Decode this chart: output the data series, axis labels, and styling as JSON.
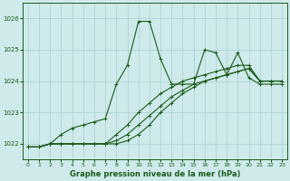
{
  "title": "Graphe pression niveau de la mer (hPa)",
  "bg_color": "#ceeaea",
  "grid_color": "#aacfcf",
  "line_color": "#1a5c1a",
  "xlim": [
    -0.5,
    23.5
  ],
  "ylim": [
    1021.5,
    1026.5
  ],
  "yticks": [
    1022,
    1023,
    1024,
    1025,
    1026
  ],
  "xticks": [
    0,
    1,
    2,
    3,
    4,
    5,
    6,
    7,
    8,
    9,
    10,
    11,
    12,
    13,
    14,
    15,
    16,
    17,
    18,
    19,
    20,
    21,
    22,
    23
  ],
  "s1": [
    1021.9,
    1021.9,
    1022.0,
    1022.3,
    1022.5,
    1022.6,
    1022.7,
    1022.8,
    1023.9,
    1024.5,
    1025.9,
    1025.9,
    1024.7,
    1023.9,
    1023.9,
    1023.9,
    1025.0,
    1024.9,
    1024.2,
    1024.9,
    1024.1,
    1023.9,
    1023.9,
    1023.9
  ],
  "s2": [
    1021.9,
    1021.9,
    1022.0,
    1022.0,
    1022.0,
    1022.0,
    1022.0,
    1022.0,
    1022.3,
    1022.6,
    1023.0,
    1023.3,
    1023.6,
    1023.8,
    1024.0,
    1024.1,
    1024.2,
    1024.3,
    1024.4,
    1024.5,
    1024.5,
    1024.0,
    1024.0,
    1024.0
  ],
  "s3": [
    1021.9,
    1021.9,
    1022.0,
    1022.0,
    1022.0,
    1022.0,
    1022.0,
    1022.0,
    1022.1,
    1022.3,
    1022.6,
    1022.9,
    1023.2,
    1023.5,
    1023.7,
    1023.9,
    1024.0,
    1024.1,
    1024.2,
    1024.3,
    1024.4,
    1024.0,
    1024.0,
    1024.0
  ],
  "s4": [
    1021.9,
    1021.9,
    1022.0,
    1022.0,
    1022.0,
    1022.0,
    1022.0,
    1022.0,
    1022.0,
    1022.1,
    1022.3,
    1022.6,
    1023.0,
    1023.3,
    1023.6,
    1023.8,
    1024.0,
    1024.1,
    1024.2,
    1024.3,
    1024.4,
    1024.0,
    1024.0,
    1024.0
  ]
}
